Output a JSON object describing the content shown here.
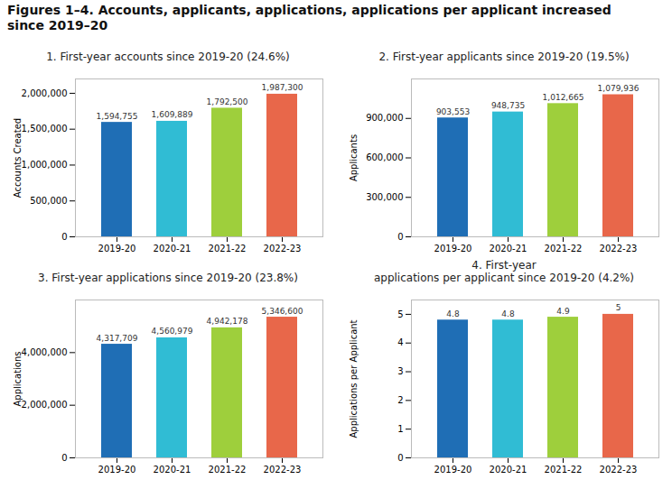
{
  "title": "Figures 1–4. Accounts, applicants, applications, applications per applicant increased\nsince 2019–20",
  "chart_data": [
    {
      "type": "bar",
      "title": "1. First-year accounts since 2019-20 (24.6%)",
      "ylabel": "Accounts Created",
      "categories": [
        "2019-20",
        "2020-21",
        "2021-22",
        "2022-23"
      ],
      "values": [
        1594755,
        1609889,
        1792500,
        1987300
      ],
      "value_labels": [
        "1,594,755",
        "1,609,889",
        "1,792,500",
        "1,987,300"
      ],
      "colors": [
        "#1f6eb5",
        "#30bcd4",
        "#9ecf3c",
        "#e8674a"
      ],
      "ylim": [
        0,
        2200000
      ],
      "yticks": [
        0,
        {
          "value": 500000,
          "label": "500,000"
        },
        {
          "value": 1000000,
          "label": "1,000,000"
        },
        {
          "value": 1500000,
          "label": "1,500,000"
        },
        {
          "value": 2000000,
          "label": "2,000,000"
        }
      ],
      "data_labels": true,
      "grid": false
    },
    {
      "type": "bar",
      "title": "2. First-year applicants since 2019-20 (19.5%)",
      "ylabel": "Applicants",
      "categories": [
        "2019-20",
        "2020-21",
        "2021-22",
        "2022-23"
      ],
      "values": [
        903553,
        948735,
        1012665,
        1079936
      ],
      "value_labels": [
        "903,553",
        "948,735",
        "1,012,665",
        "1,079,936"
      ],
      "colors": [
        "#1f6eb5",
        "#30bcd4",
        "#9ecf3c",
        "#e8674a"
      ],
      "ylim": [
        0,
        1200000
      ],
      "yticks": [
        0,
        {
          "value": 300000,
          "label": "300,000"
        },
        {
          "value": 600000,
          "label": "600,000"
        },
        {
          "value": 900000,
          "label": "900,000"
        }
      ],
      "data_labels": true,
      "grid": false
    },
    {
      "type": "bar",
      "title": "3. First-year applications since 2019-20 (23.8%)",
      "ylabel": "Applications",
      "categories": [
        "2019-20",
        "2020-21",
        "2021-22",
        "2022-23"
      ],
      "values": [
        4317709,
        4560979,
        4942178,
        5346600
      ],
      "value_labels": [
        "4,317,709",
        "4,560,979",
        "4,942,178",
        "5,346,600"
      ],
      "colors": [
        "#1f6eb5",
        "#30bcd4",
        "#9ecf3c",
        "#e8674a"
      ],
      "ylim": [
        0,
        6000000
      ],
      "yticks": [
        0,
        {
          "value": 2000000,
          "label": "2,000,000"
        },
        {
          "value": 4000000,
          "label": "4,000,000"
        }
      ],
      "data_labels": true,
      "grid": false
    },
    {
      "type": "bar",
      "title": "4. First-year\napplications per applicant since 2019-20 (4.2%)",
      "ylabel": "Applications per Applicant",
      "categories": [
        "2019-20",
        "2020-21",
        "2021-22",
        "2022-23"
      ],
      "values": [
        4.8,
        4.8,
        4.9,
        5
      ],
      "colors": [
        "#1f6eb5",
        "#30bcd4",
        "#9ecf3c",
        "#e8674a"
      ],
      "ylim": [
        0,
        5.5
      ],
      "yticks": [
        0,
        1,
        2,
        3,
        4,
        5
      ],
      "data_labels": true,
      "grid": false
    }
  ]
}
